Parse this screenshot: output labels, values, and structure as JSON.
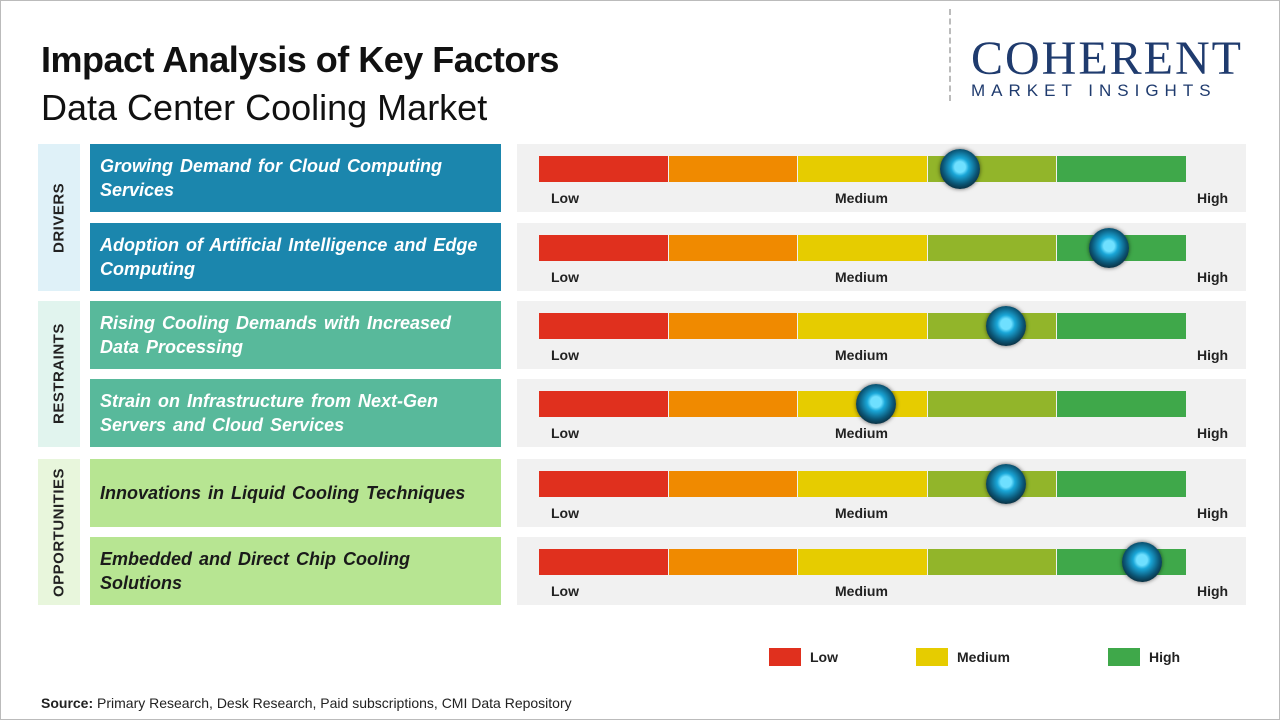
{
  "chart_data": {
    "type": "impact",
    "title": "Impact Analysis of Key Factors",
    "subtitle": "Data Center Cooling Market",
    "logo": {
      "name": "COHERENT",
      "tagline": "MARKET INSIGHTS"
    },
    "scale_labels": [
      "Low",
      "Medium",
      "High"
    ],
    "xlim": [
      0,
      100
    ],
    "groups": [
      {
        "name": "DRIVERS",
        "color": "#1b86ad",
        "text_color": "#ffffff",
        "label_bg": "#dff1f8",
        "factors": [
          {
            "name": "Growing Demand for Cloud Computing Services",
            "impact": 65
          },
          {
            "name": "Adoption of Artificial Intelligence and Edge Computing",
            "impact": 88
          }
        ]
      },
      {
        "name": "RESTRAINTS",
        "color": "#58b99b",
        "text_color": "#ffffff",
        "label_bg": "#e1f4ee",
        "factors": [
          {
            "name": "Rising Cooling Demands with Increased Data Processing",
            "impact": 72
          },
          {
            "name": "Strain on Infrastructure from Next-Gen Servers and Cloud Services",
            "impact": 52
          }
        ]
      },
      {
        "name": "OPPORTUNITIES",
        "color": "#b7e592",
        "text_color": "#1a1a1a",
        "label_bg": "#e8f6dc",
        "factors": [
          {
            "name": "Innovations in Liquid Cooling Techniques",
            "impact": 72
          },
          {
            "name": "Embedded and Direct Chip Cooling Solutions",
            "impact": 93
          }
        ]
      }
    ],
    "legend": [
      {
        "name": "Low",
        "color": "#e0301e"
      },
      {
        "name": "Medium",
        "color": "#e6cc00"
      },
      {
        "name": "High",
        "color": "#3fa84a"
      }
    ],
    "source_label": "Source:",
    "source": "Primary Research, Desk Research, Paid subscriptions, CMI Data Repository"
  }
}
